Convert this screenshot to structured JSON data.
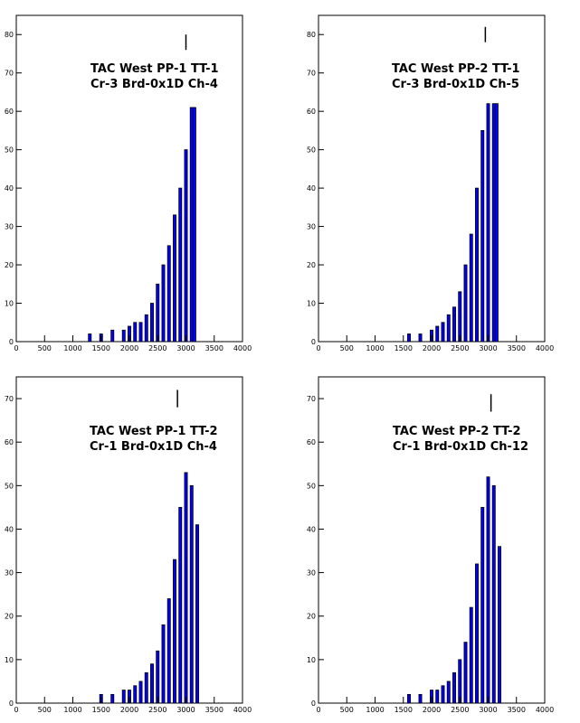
{
  "colors": {
    "fill": "#0000ff",
    "outline": "#000000",
    "background": "#ffffff"
  },
  "chart_data": [
    {
      "type": "histogram",
      "title_lines": [
        "TAC West PP-1 TT-1",
        "Cr-3 Brd-0x1D Ch-4"
      ],
      "xlim": [
        0,
        4000
      ],
      "ylim": [
        0,
        85
      ],
      "x_ticks": [
        0,
        500,
        1000,
        1500,
        2000,
        2500,
        3000,
        3500,
        4000
      ],
      "y_ticks": [
        0,
        10,
        20,
        30,
        40,
        50,
        60,
        70,
        80
      ],
      "bins": [
        [
          1300,
          2
        ],
        [
          1500,
          2
        ],
        [
          1700,
          3
        ],
        [
          1900,
          3
        ],
        [
          2000,
          4
        ],
        [
          2100,
          5
        ],
        [
          2200,
          5
        ],
        [
          2300,
          7
        ],
        [
          2400,
          10
        ],
        [
          2500,
          15
        ],
        [
          2600,
          20
        ],
        [
          2700,
          25
        ],
        [
          2800,
          33
        ],
        [
          2900,
          40
        ],
        [
          3000,
          50
        ],
        [
          3100,
          61
        ],
        [
          3150,
          61
        ]
      ],
      "spike": {
        "x": 3000,
        "y_range": [
          76,
          80
        ]
      },
      "grid": false,
      "legend": "none"
    },
    {
      "type": "histogram",
      "title_lines": [
        "TAC West PP-2 TT-1",
        "Cr-3 Brd-0x1D Ch-5"
      ],
      "xlim": [
        0,
        4000
      ],
      "ylim": [
        0,
        85
      ],
      "x_ticks": [
        0,
        500,
        1000,
        1500,
        2000,
        2500,
        3000,
        3500,
        4000
      ],
      "y_ticks": [
        0,
        10,
        20,
        30,
        40,
        50,
        60,
        70,
        80
      ],
      "bins": [
        [
          1600,
          2
        ],
        [
          1800,
          2
        ],
        [
          2000,
          3
        ],
        [
          2100,
          4
        ],
        [
          2200,
          5
        ],
        [
          2300,
          7
        ],
        [
          2400,
          9
        ],
        [
          2500,
          13
        ],
        [
          2600,
          20
        ],
        [
          2700,
          28
        ],
        [
          2800,
          40
        ],
        [
          2900,
          55
        ],
        [
          3000,
          62
        ],
        [
          3100,
          62
        ],
        [
          3150,
          62
        ]
      ],
      "spike": {
        "x": 2950,
        "y_range": [
          78,
          82
        ]
      },
      "grid": false,
      "legend": "none"
    },
    {
      "type": "histogram",
      "title_lines": [
        "TAC West PP-1 TT-2",
        "Cr-1 Brd-0x1D Ch-4"
      ],
      "xlim": [
        0,
        4000
      ],
      "ylim": [
        0,
        75
      ],
      "x_ticks": [
        0,
        500,
        1000,
        1500,
        2000,
        2500,
        3000,
        3500,
        4000
      ],
      "y_ticks": [
        0,
        10,
        20,
        30,
        40,
        50,
        60,
        70
      ],
      "bins": [
        [
          1500,
          2
        ],
        [
          1700,
          2
        ],
        [
          1900,
          3
        ],
        [
          2000,
          3
        ],
        [
          2100,
          4
        ],
        [
          2200,
          5
        ],
        [
          2300,
          7
        ],
        [
          2400,
          9
        ],
        [
          2500,
          12
        ],
        [
          2600,
          18
        ],
        [
          2700,
          24
        ],
        [
          2800,
          33
        ],
        [
          2900,
          45
        ],
        [
          3000,
          53
        ],
        [
          3100,
          50
        ],
        [
          3200,
          41
        ]
      ],
      "spike": {
        "x": 2850,
        "y_range": [
          68,
          72
        ]
      },
      "grid": false,
      "legend": "none"
    },
    {
      "type": "histogram",
      "title_lines": [
        "TAC West PP-2 TT-2",
        "Cr-1 Brd-0x1D Ch-12"
      ],
      "xlim": [
        0,
        4000
      ],
      "ylim": [
        0,
        75
      ],
      "x_ticks": [
        0,
        500,
        1000,
        1500,
        2000,
        2500,
        3000,
        3500,
        4000
      ],
      "y_ticks": [
        0,
        10,
        20,
        30,
        40,
        50,
        60,
        70
      ],
      "bins": [
        [
          1600,
          2
        ],
        [
          1800,
          2
        ],
        [
          2000,
          3
        ],
        [
          2100,
          3
        ],
        [
          2200,
          4
        ],
        [
          2300,
          5
        ],
        [
          2400,
          7
        ],
        [
          2500,
          10
        ],
        [
          2600,
          14
        ],
        [
          2700,
          22
        ],
        [
          2800,
          32
        ],
        [
          2900,
          45
        ],
        [
          3000,
          52
        ],
        [
          3100,
          50
        ],
        [
          3200,
          36
        ]
      ],
      "spike": {
        "x": 3050,
        "y_range": [
          67,
          71
        ]
      },
      "grid": false,
      "legend": "none"
    }
  ]
}
